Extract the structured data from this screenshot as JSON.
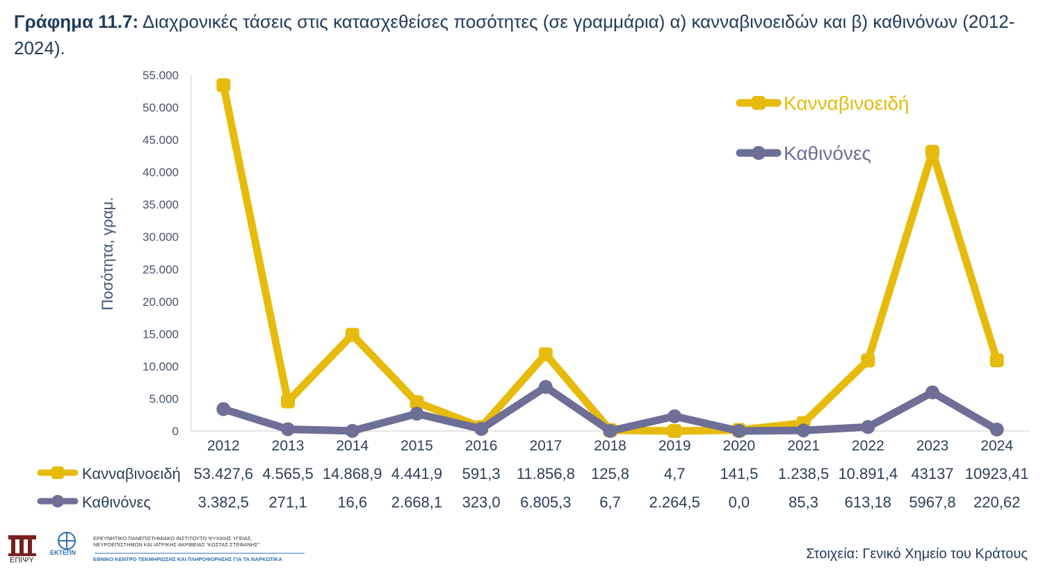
{
  "title": {
    "prefix": "Γράφημα 11.7:",
    "text": "Διαχρονικές τάσεις στις κατασχεθείσες ποσότητες (σε γραμμάρια) α) κανναβινοειδών και β) καθινόνων (2012-2024)."
  },
  "source": "Στοιχεία: Γενικό Χημείο του Κράτους",
  "logos": {
    "left_label": "ΕΠΙΨΥ",
    "mid_label": "ΕΚΤΕΠΝ",
    "line1": "ΕΡΕΥΝΗΤΙΚΟ ΠΑΝΕΠΙΣΤΗΜΙΑΚΟ ΙΝΣΤΙΤΟΥΤΟ ΨΥΧΙΚΗΣ ΥΓΕΙΑΣ,",
    "line2": "ΝΕΥΡΟΕΠΙΣΤΗΜΩΝ ΚΑΙ ΙΑΤΡΙΚΗΣ ΑΚΡΙΒΕΙΑΣ “ΚΩΣΤΑΣ ΣΤΕΦΑΝΗΣ”",
    "line3": "ΕΘΝΙΚΟ ΚΕΝΤΡΟ ΤΕΚΜΗΡΙΩΣΗΣ ΚΑΙ ΠΛΗΡΟΦΟΡΗΣΗΣ ΓΙΑ ΤΑ ΝΑΡΚΩΤΙΚΑ"
  },
  "chart_data": {
    "type": "line",
    "ylabel": "Ποσότητα, γραμ.",
    "xlabel": "",
    "ylim": [
      0,
      55000
    ],
    "ytick_step": 5000,
    "ytick_labels": [
      "0",
      "5.000",
      "10.000",
      "15.000",
      "20.000",
      "25.000",
      "30.000",
      "35.000",
      "40.000",
      "45.000",
      "50.000",
      "55.000"
    ],
    "categories": [
      "2012",
      "2013",
      "2014",
      "2015",
      "2016",
      "2017",
      "2018",
      "2019",
      "2020",
      "2021",
      "2022",
      "2023",
      "2024"
    ],
    "legend_position": "top-right",
    "series": [
      {
        "name": "Κανναβινοειδή",
        "color": "#e6bb0c",
        "values": [
          53427.6,
          4565.5,
          14868.9,
          4441.9,
          591.3,
          11856.8,
          125.8,
          4.7,
          141.5,
          1238.5,
          10891.4,
          43137,
          10923.41
        ],
        "labels": [
          "53.427,6",
          "4.565,5",
          "14.868,9",
          "4.441,9",
          "591,3",
          "11.856,8",
          "125,8",
          "4,7",
          "141,5",
          "1.238,5",
          "10.891,4",
          "43137",
          "10923,41"
        ]
      },
      {
        "name": "Καθινόνες",
        "color": "#6e6f96",
        "values": [
          3382.5,
          271.1,
          16.6,
          2668.1,
          323.0,
          6805.3,
          6.7,
          2264.5,
          0.0,
          85.3,
          613.18,
          5967.8,
          220.62
        ],
        "labels": [
          "3.382,5",
          "271,1",
          "16,6",
          "2.668,1",
          "323,0",
          "6.805,3",
          "6,7",
          "2.264,5",
          "0,0",
          "85,3",
          "613,18",
          "5967,8",
          "220,62"
        ]
      }
    ]
  }
}
